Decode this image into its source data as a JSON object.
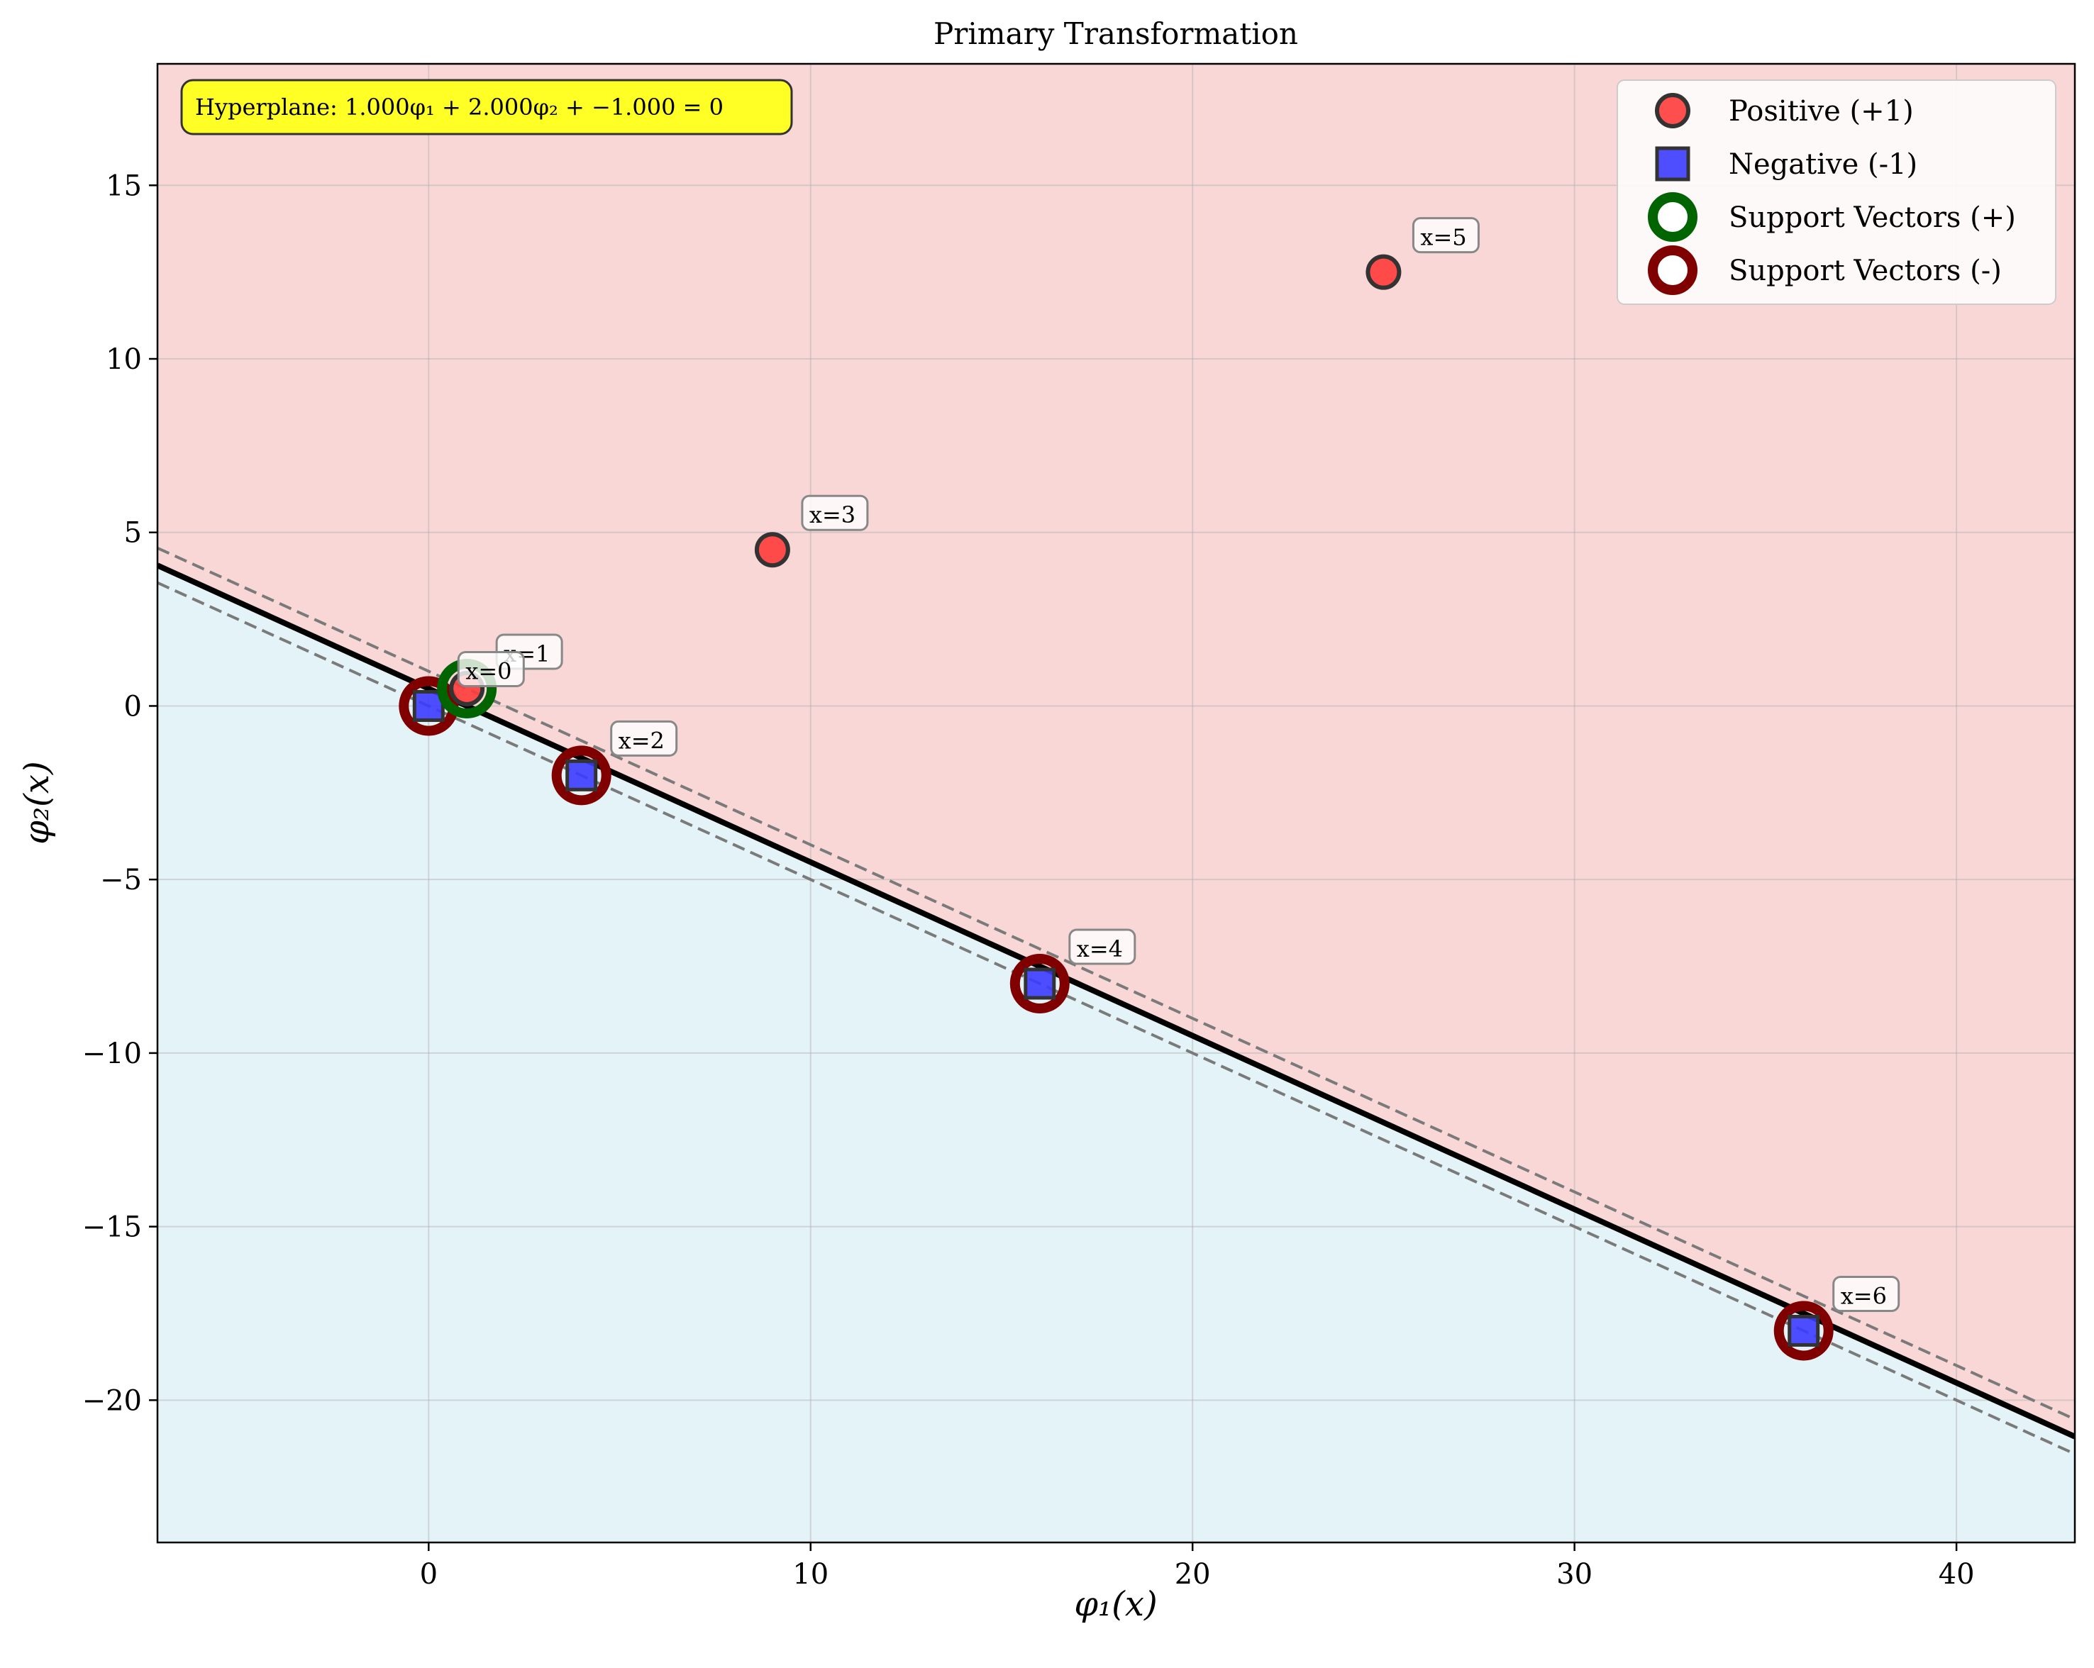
{
  "chart_data": {
    "type": "scatter",
    "title": "Primary Transformation",
    "xlabel": "φ₁(x)",
    "ylabel": "φ₂(x)",
    "xlim": [
      -7.1,
      43.1
    ],
    "ylim": [
      -24.1,
      18.5
    ],
    "xticks": [
      0,
      10,
      20,
      30,
      40
    ],
    "yticks": [
      -20,
      -15,
      -10,
      -5,
      0,
      5,
      10,
      15
    ],
    "xtick_labels": [
      "0",
      "10",
      "20",
      "30",
      "40"
    ],
    "ytick_labels": [
      "−20",
      "−15",
      "−10",
      "−5",
      "0",
      "5",
      "10",
      "15"
    ],
    "grid": true,
    "hyperplane": {
      "w1": 1.0,
      "w2": 2.0,
      "b": -1.0,
      "label": "Hyperplane: 1.000φ₁ + 2.000φ₂ + −1.000 = 0",
      "margin_offset": 1.0
    },
    "regions": {
      "positive_color": "#f9d7d7",
      "negative_color": "#e4f3f7"
    },
    "series": [
      {
        "name": "Positive (+1)",
        "marker": "circle",
        "color": "#ff3b3b",
        "points": [
          {
            "x": 1,
            "y": 0.5,
            "label": "x=1"
          },
          {
            "x": 9,
            "y": 4.5,
            "label": "x=3"
          },
          {
            "x": 25,
            "y": 12.5,
            "label": "x=5"
          }
        ]
      },
      {
        "name": "Negative (-1)",
        "marker": "square",
        "color": "#3b3bff",
        "points": [
          {
            "x": 0,
            "y": 0,
            "label": "x=0"
          },
          {
            "x": 4,
            "y": -2,
            "label": "x=2"
          },
          {
            "x": 16,
            "y": -8,
            "label": "x=4"
          },
          {
            "x": 36,
            "y": -18,
            "label": "x=6"
          }
        ]
      },
      {
        "name": "Support Vectors (+)",
        "marker": "ring",
        "color": "#006400",
        "points": [
          {
            "x": 1,
            "y": 0.5
          }
        ]
      },
      {
        "name": "Support Vectors (-)",
        "marker": "ring",
        "color": "#800000",
        "points": [
          {
            "x": 0,
            "y": 0
          },
          {
            "x": 4,
            "y": -2
          },
          {
            "x": 16,
            "y": -8
          },
          {
            "x": 36,
            "y": -18
          }
        ]
      }
    ],
    "legend": {
      "placement": "top-right",
      "entries": [
        "Positive (+1)",
        "Negative (-1)",
        "Support Vectors (+)",
        "Support Vectors (-)"
      ]
    }
  }
}
